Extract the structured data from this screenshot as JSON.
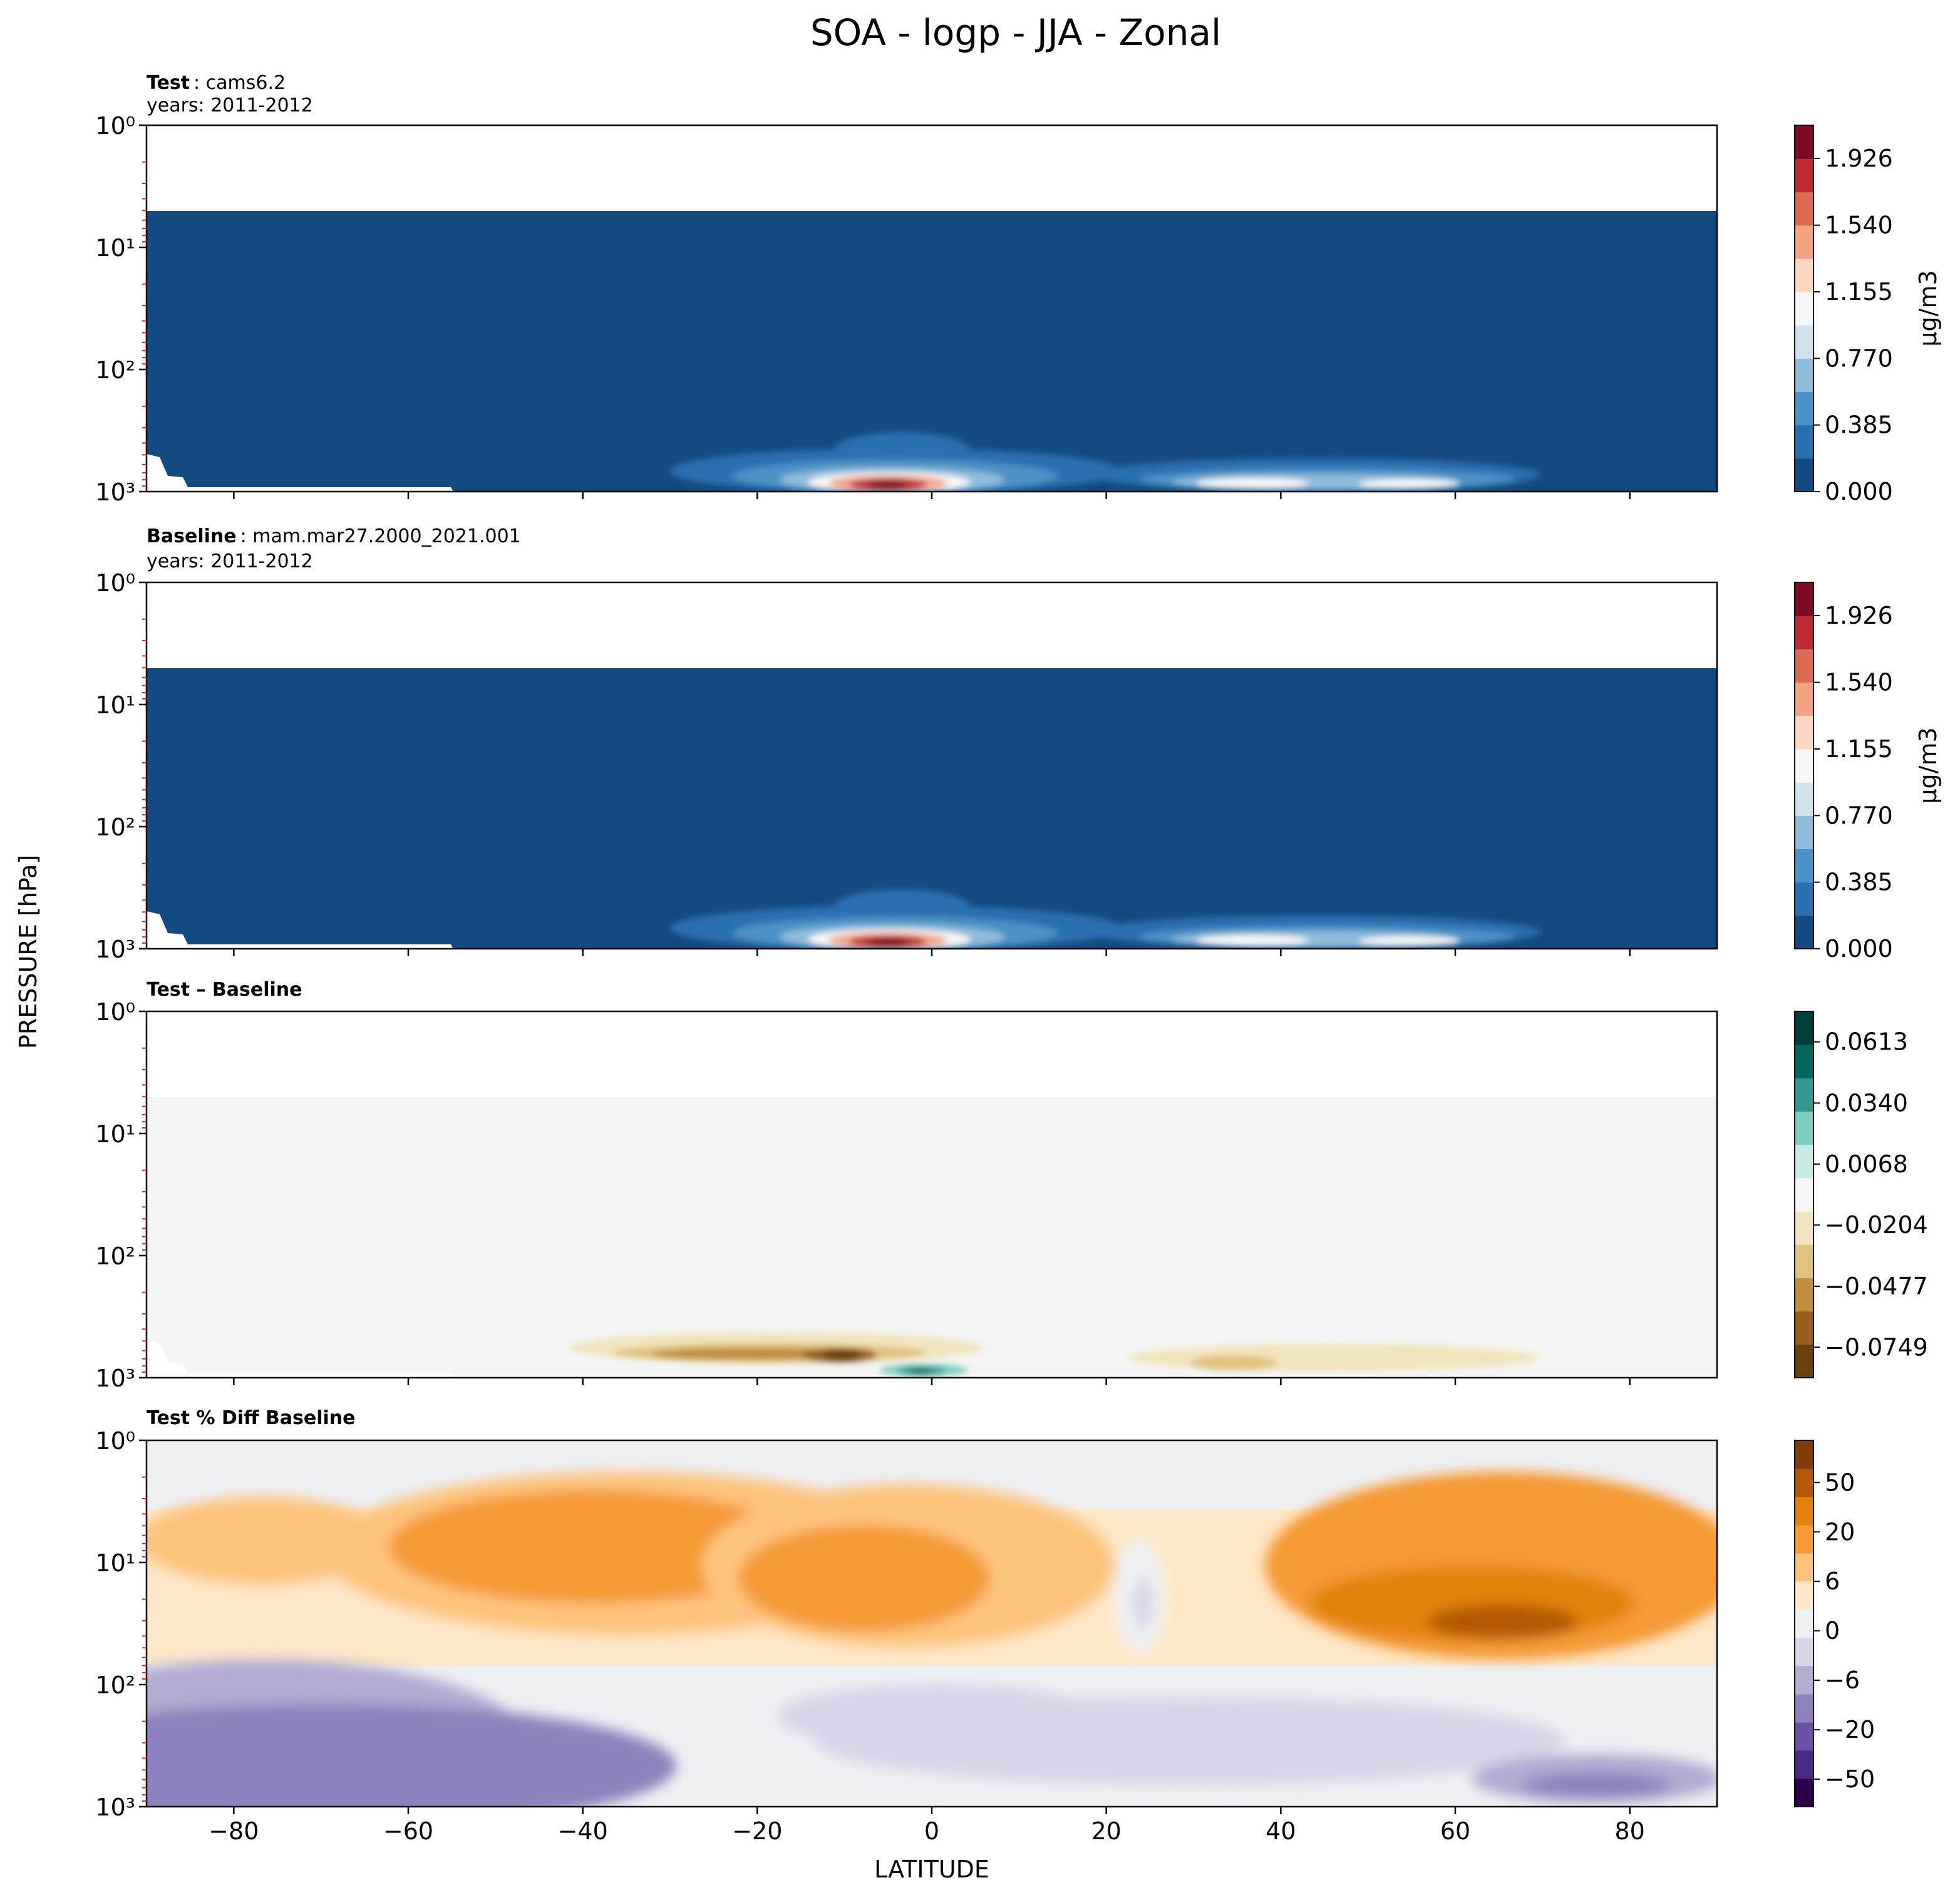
{
  "figure": {
    "title": "SOA - logp - JJA - Zonal",
    "ylabel": "PRESSURE [hPa]",
    "xlabel": "LATITUDE"
  },
  "chart_data": [
    {
      "type": "heatmap",
      "panel": "test",
      "label_bold": "Test",
      "label_text": ": cams6.2",
      "years": "years: 2011-2012",
      "x_range": [
        -90,
        90
      ],
      "x_ticks": [
        -80,
        -60,
        -40,
        -20,
        0,
        20,
        40,
        60,
        80
      ],
      "y_scale": "log",
      "y_range": [
        1,
        1000
      ],
      "y_inverted": true,
      "y_ticks": [
        1,
        10,
        100,
        1000
      ],
      "y_tick_labels": [
        "10⁰",
        "10¹",
        "10²",
        "10³"
      ],
      "colorbar": {
        "label": "μg/m3",
        "tick_values": [
          0,
          0.385,
          0.77,
          1.155,
          1.54,
          1.926
        ],
        "tick_labels": [
          "0.000",
          "0.385",
          "0.770",
          "1.155",
          "1.540",
          "1.926"
        ],
        "colors": [
          "#154a80",
          "#2a6fb0",
          "#4b92c6",
          "#8fbcdc",
          "#cfe2ee",
          "#f7f7f7",
          "#fbd6c0",
          "#f2a384",
          "#dc6b56",
          "#bd2b36",
          "#7d0a24"
        ]
      },
      "description_values": {
        "background": 0.0,
        "peak_lat": -5,
        "peak_value": 2.0,
        "secondary_peak_lat": 45,
        "secondary_value": 1.0
      }
    },
    {
      "type": "heatmap",
      "panel": "baseline",
      "label_bold": "Baseline",
      "label_text": ": mam.mar27.2000_2021.001",
      "years": "years: 2011-2012",
      "x_range": [
        -90,
        90
      ],
      "x_ticks": [
        -80,
        -60,
        -40,
        -20,
        0,
        20,
        40,
        60,
        80
      ],
      "y_scale": "log",
      "y_range": [
        1,
        1000
      ],
      "y_inverted": true,
      "y_ticks": [
        1,
        10,
        100,
        1000
      ],
      "y_tick_labels": [
        "10⁰",
        "10¹",
        "10²",
        "10³"
      ],
      "colorbar": {
        "label": "μg/m3",
        "tick_values": [
          0,
          0.385,
          0.77,
          1.155,
          1.54,
          1.926
        ],
        "tick_labels": [
          "0.000",
          "0.385",
          "0.770",
          "1.155",
          "1.540",
          "1.926"
        ],
        "colors": [
          "#154a80",
          "#2a6fb0",
          "#4b92c6",
          "#8fbcdc",
          "#cfe2ee",
          "#f7f7f7",
          "#fbd6c0",
          "#f2a384",
          "#dc6b56",
          "#bd2b36",
          "#7d0a24"
        ]
      }
    },
    {
      "type": "heatmap",
      "panel": "difference",
      "label_bold": "Test – Baseline",
      "label_text": "",
      "years": "",
      "x_range": [
        -90,
        90
      ],
      "x_ticks": [
        -80,
        -60,
        -40,
        -20,
        0,
        20,
        40,
        60,
        80
      ],
      "y_scale": "log",
      "y_range": [
        1,
        1000
      ],
      "y_inverted": true,
      "y_ticks": [
        1,
        10,
        100,
        1000
      ],
      "y_tick_labels": [
        "10⁰",
        "10¹",
        "10²",
        "10³"
      ],
      "colorbar": {
        "label": "",
        "tick_values": [
          -0.0749,
          -0.0477,
          -0.0204,
          0.0068,
          0.034,
          0.0613
        ],
        "tick_labels": [
          "−0.0749",
          "−0.0477",
          "−0.0204",
          "0.0068",
          "0.0340",
          "0.0613"
        ],
        "colors": [
          "#6b3f0a",
          "#94601b",
          "#c0903f",
          "#dfc27d",
          "#f3e4c0",
          "#f5f5f5",
          "#c7eae5",
          "#80cdc1",
          "#35978f",
          "#01665e",
          "#013f3a"
        ]
      }
    },
    {
      "type": "heatmap",
      "panel": "percent_difference",
      "label_bold": "Test % Diff Baseline",
      "label_text": "",
      "years": "",
      "x_range": [
        -90,
        90
      ],
      "x_ticks": [
        -80,
        -60,
        -40,
        -20,
        0,
        20,
        40,
        60,
        80
      ],
      "x_tick_labels": [
        "−80",
        "−60",
        "−40",
        "−20",
        "0",
        "20",
        "40",
        "60",
        "80"
      ],
      "y_scale": "log",
      "y_range": [
        1,
        1000
      ],
      "y_inverted": true,
      "y_ticks": [
        1,
        10,
        100,
        1000
      ],
      "y_tick_labels": [
        "10⁰",
        "10¹",
        "10²",
        "10³"
      ],
      "colorbar": {
        "label": "",
        "tick_values": [
          -50,
          -20,
          -6,
          0,
          6,
          20,
          50
        ],
        "tick_labels": [
          "−50",
          "−20",
          "−6",
          "0",
          "6",
          "20",
          "50"
        ],
        "colors": [
          "#2d004b",
          "#4a2a85",
          "#6a51a3",
          "#8f82bd",
          "#b4acd2",
          "#d7d5e8",
          "#eeeff3",
          "#fde7c8",
          "#fdc37d",
          "#f59a35",
          "#e3820f",
          "#b35806",
          "#7f3b08"
        ]
      }
    }
  ]
}
